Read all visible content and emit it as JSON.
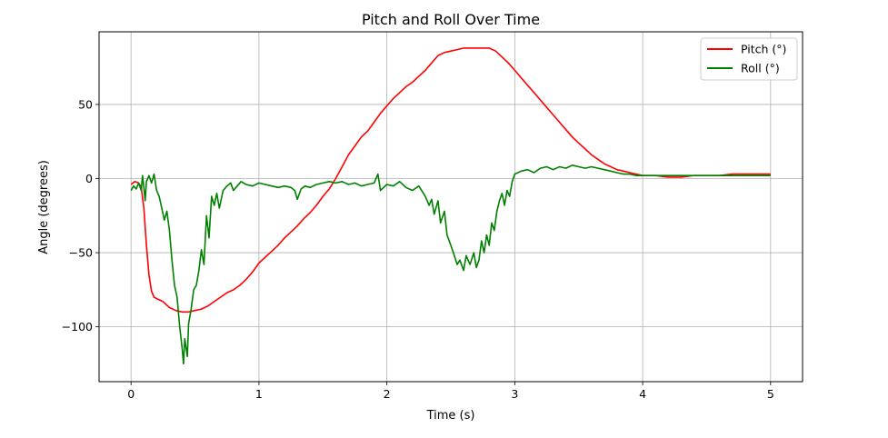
{
  "chart_data": {
    "type": "line",
    "title": "Pitch and Roll Over Time",
    "xlabel": "Time (s)",
    "ylabel": "Angle (degrees)",
    "xlim": [
      -0.25,
      5.25
    ],
    "ylim": [
      -137,
      99
    ],
    "xticks": [
      0,
      1,
      2,
      3,
      4,
      5
    ],
    "xtick_labels": [
      "0",
      "1",
      "2",
      "3",
      "4",
      "5"
    ],
    "yticks": [
      -100,
      -50,
      0,
      50
    ],
    "ytick_labels": [
      "−100",
      "−50",
      "0",
      "50"
    ],
    "grid": true,
    "legend_position": "top-right",
    "series": [
      {
        "name": "Pitch (°)",
        "color": "#ff0000",
        "points": [
          [
            0.0,
            -4
          ],
          [
            0.03,
            -2
          ],
          [
            0.06,
            -3
          ],
          [
            0.08,
            -6
          ],
          [
            0.1,
            -20
          ],
          [
            0.12,
            -45
          ],
          [
            0.14,
            -65
          ],
          [
            0.16,
            -76
          ],
          [
            0.18,
            -80
          ],
          [
            0.2,
            -81
          ],
          [
            0.25,
            -83
          ],
          [
            0.3,
            -87
          ],
          [
            0.35,
            -89
          ],
          [
            0.4,
            -90
          ],
          [
            0.45,
            -90
          ],
          [
            0.5,
            -89
          ],
          [
            0.55,
            -88
          ],
          [
            0.6,
            -86
          ],
          [
            0.65,
            -83
          ],
          [
            0.7,
            -80
          ],
          [
            0.75,
            -77
          ],
          [
            0.8,
            -75
          ],
          [
            0.85,
            -72
          ],
          [
            0.9,
            -68
          ],
          [
            0.95,
            -63
          ],
          [
            1.0,
            -57
          ],
          [
            1.05,
            -53
          ],
          [
            1.1,
            -49
          ],
          [
            1.15,
            -45
          ],
          [
            1.2,
            -40
          ],
          [
            1.25,
            -36
          ],
          [
            1.3,
            -32
          ],
          [
            1.35,
            -27
          ],
          [
            1.4,
            -23
          ],
          [
            1.45,
            -18
          ],
          [
            1.5,
            -12
          ],
          [
            1.55,
            -7
          ],
          [
            1.6,
            0
          ],
          [
            1.65,
            8
          ],
          [
            1.7,
            16
          ],
          [
            1.75,
            22
          ],
          [
            1.8,
            28
          ],
          [
            1.85,
            32
          ],
          [
            1.9,
            38
          ],
          [
            1.95,
            44
          ],
          [
            2.0,
            49
          ],
          [
            2.05,
            54
          ],
          [
            2.1,
            58
          ],
          [
            2.15,
            62
          ],
          [
            2.2,
            65
          ],
          [
            2.25,
            69
          ],
          [
            2.3,
            73
          ],
          [
            2.35,
            78
          ],
          [
            2.4,
            83
          ],
          [
            2.45,
            85
          ],
          [
            2.5,
            86
          ],
          [
            2.55,
            87
          ],
          [
            2.6,
            88
          ],
          [
            2.65,
            88
          ],
          [
            2.7,
            88
          ],
          [
            2.75,
            88
          ],
          [
            2.8,
            88
          ],
          [
            2.85,
            86
          ],
          [
            2.9,
            82
          ],
          [
            2.95,
            78
          ],
          [
            3.0,
            73
          ],
          [
            3.05,
            68
          ],
          [
            3.1,
            63
          ],
          [
            3.15,
            58
          ],
          [
            3.2,
            53
          ],
          [
            3.25,
            48
          ],
          [
            3.3,
            43
          ],
          [
            3.35,
            38
          ],
          [
            3.4,
            33
          ],
          [
            3.45,
            28
          ],
          [
            3.5,
            24
          ],
          [
            3.55,
            20
          ],
          [
            3.6,
            16
          ],
          [
            3.65,
            13
          ],
          [
            3.7,
            10
          ],
          [
            3.75,
            8
          ],
          [
            3.8,
            6
          ],
          [
            3.85,
            5
          ],
          [
            3.9,
            4
          ],
          [
            3.95,
            3
          ],
          [
            4.0,
            2
          ],
          [
            4.1,
            2
          ],
          [
            4.2,
            1
          ],
          [
            4.3,
            1
          ],
          [
            4.4,
            2
          ],
          [
            4.5,
            2
          ],
          [
            4.6,
            2
          ],
          [
            4.7,
            3
          ],
          [
            4.8,
            3
          ],
          [
            4.9,
            3
          ],
          [
            5.0,
            3
          ]
        ]
      },
      {
        "name": "Roll (°)",
        "color": "#008000",
        "points": [
          [
            0.0,
            -8
          ],
          [
            0.02,
            -5
          ],
          [
            0.04,
            -7
          ],
          [
            0.06,
            -3
          ],
          [
            0.08,
            -8
          ],
          [
            0.09,
            2
          ],
          [
            0.1,
            -6
          ],
          [
            0.11,
            -15
          ],
          [
            0.12,
            -2
          ],
          [
            0.14,
            2
          ],
          [
            0.16,
            -3
          ],
          [
            0.18,
            3
          ],
          [
            0.2,
            -8
          ],
          [
            0.22,
            -12
          ],
          [
            0.24,
            -20
          ],
          [
            0.26,
            -28
          ],
          [
            0.28,
            -22
          ],
          [
            0.3,
            -35
          ],
          [
            0.32,
            -55
          ],
          [
            0.34,
            -72
          ],
          [
            0.36,
            -80
          ],
          [
            0.38,
            -100
          ],
          [
            0.4,
            -115
          ],
          [
            0.41,
            -125
          ],
          [
            0.42,
            -108
          ],
          [
            0.44,
            -120
          ],
          [
            0.45,
            -98
          ],
          [
            0.47,
            -88
          ],
          [
            0.49,
            -75
          ],
          [
            0.51,
            -72
          ],
          [
            0.53,
            -62
          ],
          [
            0.55,
            -48
          ],
          [
            0.57,
            -58
          ],
          [
            0.59,
            -25
          ],
          [
            0.61,
            -40
          ],
          [
            0.63,
            -12
          ],
          [
            0.65,
            -18
          ],
          [
            0.67,
            -10
          ],
          [
            0.69,
            -20
          ],
          [
            0.72,
            -8
          ],
          [
            0.75,
            -5
          ],
          [
            0.78,
            -3
          ],
          [
            0.8,
            -8
          ],
          [
            0.83,
            -5
          ],
          [
            0.86,
            -2
          ],
          [
            0.9,
            -4
          ],
          [
            0.95,
            -5
          ],
          [
            1.0,
            -3
          ],
          [
            1.05,
            -4
          ],
          [
            1.1,
            -5
          ],
          [
            1.15,
            -6
          ],
          [
            1.2,
            -5
          ],
          [
            1.25,
            -6
          ],
          [
            1.28,
            -8
          ],
          [
            1.3,
            -14
          ],
          [
            1.33,
            -7
          ],
          [
            1.36,
            -5
          ],
          [
            1.4,
            -6
          ],
          [
            1.45,
            -4
          ],
          [
            1.5,
            -3
          ],
          [
            1.55,
            -2
          ],
          [
            1.6,
            -3
          ],
          [
            1.65,
            -2
          ],
          [
            1.7,
            -4
          ],
          [
            1.75,
            -3
          ],
          [
            1.8,
            -5
          ],
          [
            1.85,
            -4
          ],
          [
            1.9,
            -3
          ],
          [
            1.93,
            3
          ],
          [
            1.95,
            -8
          ],
          [
            2.0,
            -4
          ],
          [
            2.05,
            -5
          ],
          [
            2.1,
            -2
          ],
          [
            2.15,
            -6
          ],
          [
            2.2,
            -8
          ],
          [
            2.25,
            -5
          ],
          [
            2.3,
            -12
          ],
          [
            2.33,
            -18
          ],
          [
            2.35,
            -14
          ],
          [
            2.37,
            -24
          ],
          [
            2.4,
            -15
          ],
          [
            2.42,
            -30
          ],
          [
            2.45,
            -22
          ],
          [
            2.47,
            -38
          ],
          [
            2.5,
            -45
          ],
          [
            2.52,
            -50
          ],
          [
            2.55,
            -58
          ],
          [
            2.57,
            -55
          ],
          [
            2.6,
            -62
          ],
          [
            2.62,
            -52
          ],
          [
            2.65,
            -58
          ],
          [
            2.68,
            -50
          ],
          [
            2.7,
            -60
          ],
          [
            2.72,
            -55
          ],
          [
            2.74,
            -42
          ],
          [
            2.76,
            -50
          ],
          [
            2.78,
            -38
          ],
          [
            2.8,
            -45
          ],
          [
            2.82,
            -30
          ],
          [
            2.84,
            -35
          ],
          [
            2.86,
            -22
          ],
          [
            2.88,
            -15
          ],
          [
            2.9,
            -10
          ],
          [
            2.92,
            -18
          ],
          [
            2.94,
            -8
          ],
          [
            2.96,
            -12
          ],
          [
            2.98,
            -2
          ],
          [
            3.0,
            3
          ],
          [
            3.05,
            5
          ],
          [
            3.1,
            6
          ],
          [
            3.15,
            4
          ],
          [
            3.2,
            7
          ],
          [
            3.25,
            8
          ],
          [
            3.3,
            6
          ],
          [
            3.35,
            8
          ],
          [
            3.4,
            7
          ],
          [
            3.45,
            9
          ],
          [
            3.5,
            8
          ],
          [
            3.55,
            7
          ],
          [
            3.6,
            8
          ],
          [
            3.65,
            7
          ],
          [
            3.7,
            6
          ],
          [
            3.75,
            5
          ],
          [
            3.8,
            4
          ],
          [
            3.85,
            3
          ],
          [
            3.9,
            3
          ],
          [
            3.95,
            2
          ],
          [
            4.0,
            2
          ],
          [
            4.1,
            2
          ],
          [
            4.2,
            2
          ],
          [
            4.3,
            2
          ],
          [
            4.4,
            2
          ],
          [
            4.5,
            2
          ],
          [
            4.6,
            2
          ],
          [
            4.7,
            2
          ],
          [
            4.8,
            2
          ],
          [
            4.9,
            2
          ],
          [
            5.0,
            2
          ]
        ]
      }
    ]
  }
}
